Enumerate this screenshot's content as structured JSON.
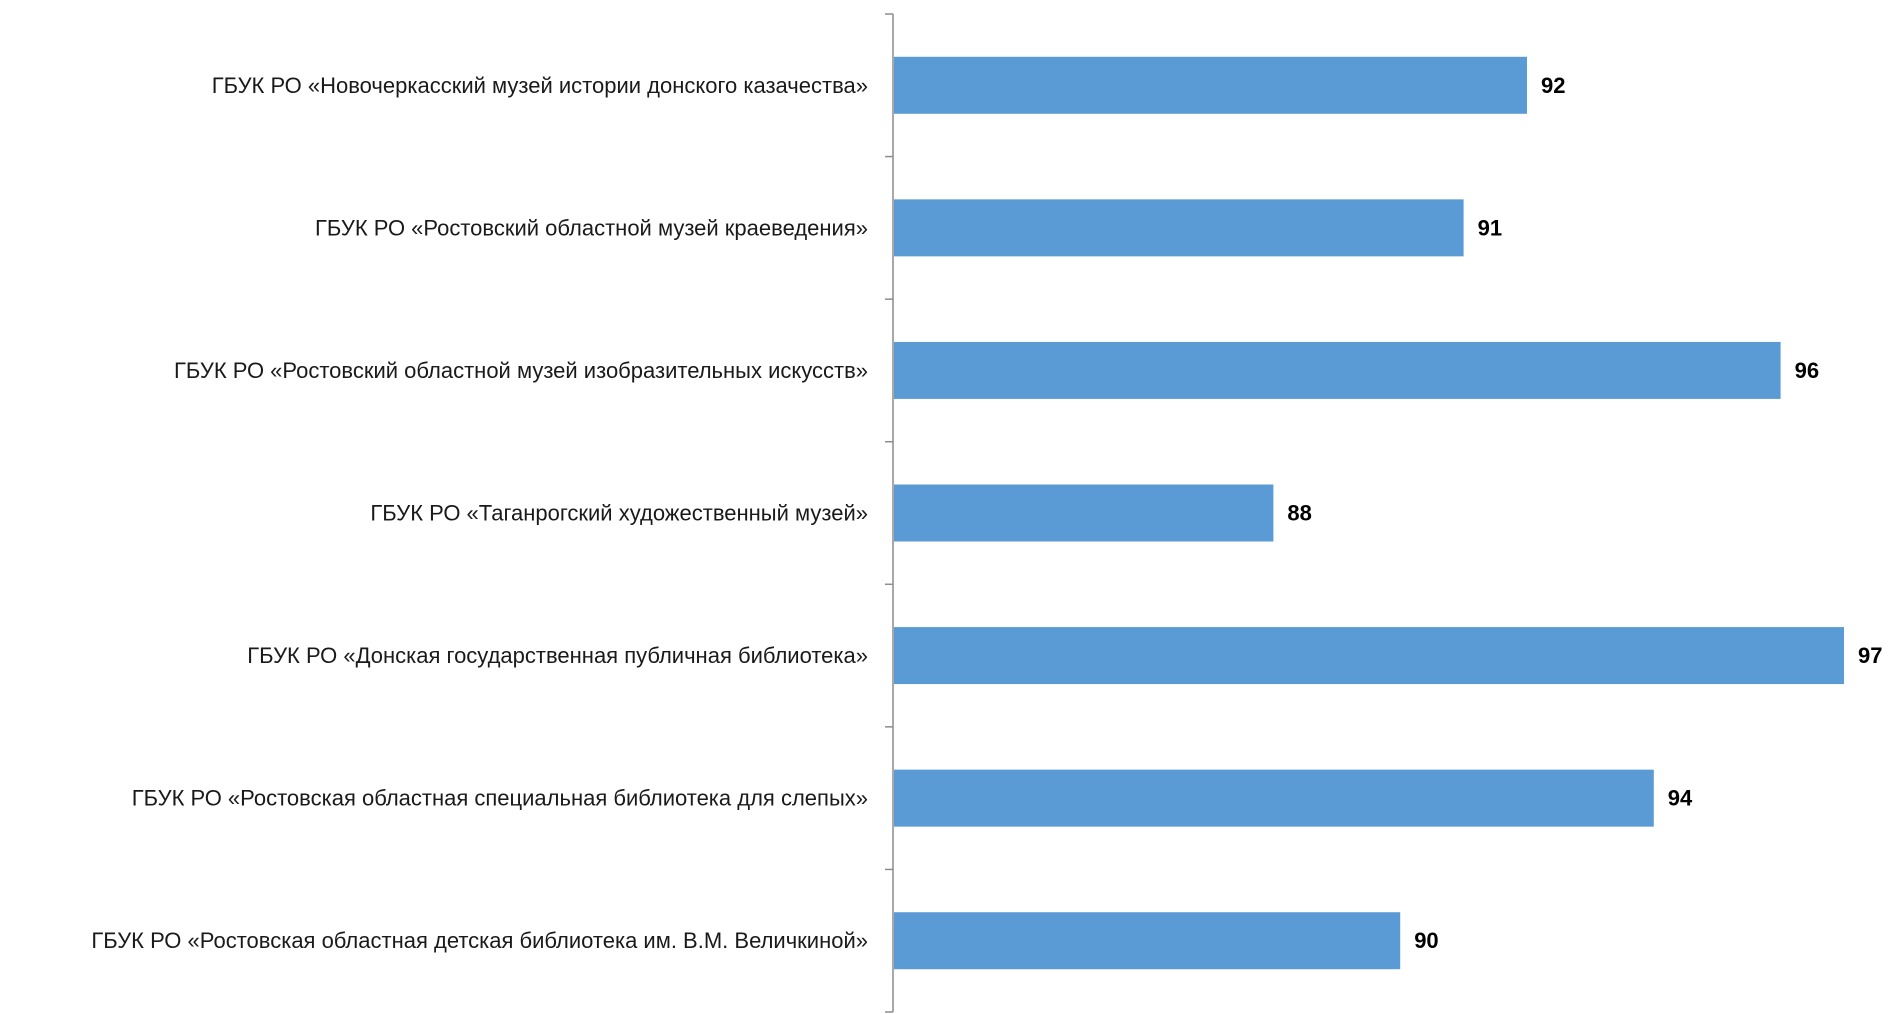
{
  "chart_data": {
    "type": "bar",
    "orientation": "horizontal",
    "categories": [
      "ГБУК РО «Новочеркасский музей истории донского казачества»",
      "ГБУК РО «Ростовский областной музей краеведения»",
      "ГБУК РО «Ростовский областной музей изобразительных искусств»",
      "ГБУК РО «Таганрогский художественный музей»",
      "ГБУК РО «Донская государственная публичная библиотека»",
      "ГБУК РО «Ростовская областная специальная библиотека для слепых»",
      "ГБУК РО «Ростовская областная детская библиотека им. В.М. Величкиной»"
    ],
    "values": [
      92,
      91,
      96,
      88,
      97,
      94,
      90
    ],
    "value_labels": [
      "92",
      "91",
      "96",
      "88",
      "97",
      "94",
      "90"
    ],
    "xlim": [
      82,
      97.3
    ],
    "title": "",
    "xlabel": "",
    "ylabel": "",
    "grid": false,
    "legend": "none",
    "bar_color": "#5b9bd5",
    "axis_color": "#8c8c8c"
  }
}
